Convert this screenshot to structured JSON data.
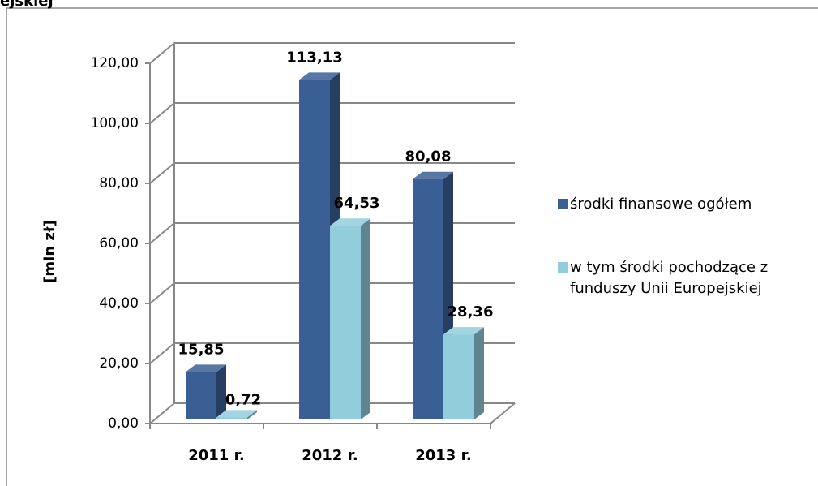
{
  "chart_data": {
    "type": "bar3d",
    "title": "ejskiej",
    "y_label": "[mln zł]",
    "categories": [
      "2011 r.",
      "2012 r.",
      "2013 r."
    ],
    "series": [
      {
        "name": "środki finansowe ogółem",
        "color": "#3a5f95",
        "values": [
          15.85,
          113.13,
          80.08
        ],
        "value_labels": [
          "15,85",
          "113,13",
          "80,08"
        ]
      },
      {
        "name": "w tym środki pochodzące z funduszy Unii Europejskiej",
        "color": "#92cddc",
        "values": [
          0.72,
          64.53,
          28.36
        ],
        "value_labels": [
          "0,72",
          "64,53",
          "28,36"
        ]
      }
    ],
    "ylim": [
      0,
      120
    ],
    "yticks": [
      {
        "value": 0,
        "label": "0,00"
      },
      {
        "value": 20,
        "label": "20,00"
      },
      {
        "value": 40,
        "label": "40,00"
      },
      {
        "value": 60,
        "label": "60,00"
      },
      {
        "value": 80,
        "label": "80,00"
      },
      {
        "value": 100,
        "label": "100,00"
      },
      {
        "value": 120,
        "label": "120,00"
      }
    ],
    "grid": true,
    "legend": "right"
  }
}
